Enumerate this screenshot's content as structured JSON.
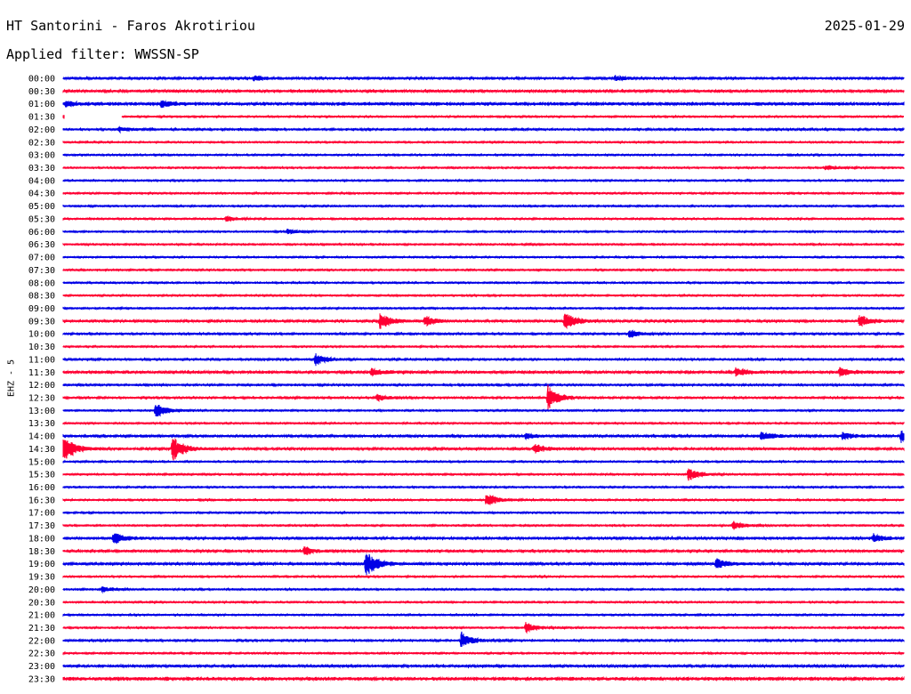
{
  "header": {
    "title": "HT Santorini - Faros Akrotiriou",
    "date": "2025-01-29",
    "filter": "Applied filter: WWSSN-SP"
  },
  "chart_data": {
    "type": "helicorder",
    "channel_label": "EHZ - 5",
    "colors": [
      "#0000e6",
      "#ff0033"
    ],
    "tick_labels": [
      "00:00",
      "00:30",
      "01:00",
      "01:30",
      "02:00",
      "02:30",
      "03:00",
      "03:30",
      "04:00",
      "04:30",
      "05:00",
      "05:30",
      "06:00",
      "06:30",
      "07:00",
      "07:30",
      "08:00",
      "08:30",
      "09:00",
      "09:30",
      "10:00",
      "10:30",
      "11:00",
      "11:30",
      "12:00",
      "12:30",
      "13:00",
      "13:30",
      "14:00",
      "14:30",
      "15:00",
      "15:30",
      "16:00",
      "16:30",
      "17:00",
      "17:30",
      "18:00",
      "18:30",
      "19:00",
      "19:30",
      "20:00",
      "20:30",
      "21:00",
      "21:30",
      "22:00",
      "22:30",
      "23:00",
      "23:30"
    ],
    "row_minutes": 30,
    "noise": [
      0.8,
      0.9,
      1.2,
      0.6,
      0.7,
      0.6,
      0.6,
      0.6,
      0.6,
      0.6,
      0.6,
      0.6,
      0.6,
      0.6,
      0.6,
      0.6,
      0.6,
      0.6,
      0.6,
      0.8,
      0.7,
      0.6,
      0.7,
      1.0,
      0.7,
      0.7,
      0.6,
      0.6,
      0.9,
      0.8,
      0.6,
      0.6,
      0.6,
      0.6,
      0.6,
      0.6,
      0.9,
      0.8,
      0.9,
      0.6,
      0.6,
      0.6,
      0.6,
      0.6,
      0.7,
      0.6,
      0.9,
      1.3
    ],
    "gap": {
      "row": 3,
      "from_minute": 0.05,
      "to_minute": 2.1
    },
    "events": [
      {
        "row": 0,
        "minute": 6.8,
        "amp": 3
      },
      {
        "row": 0,
        "minute": 19.7,
        "amp": 3
      },
      {
        "row": 2,
        "minute": 0.1,
        "amp": 3
      },
      {
        "row": 2,
        "minute": 3.5,
        "amp": 3.5
      },
      {
        "row": 3,
        "minute": 0.0,
        "amp": 2
      },
      {
        "row": 4,
        "minute": 2.0,
        "amp": 3
      },
      {
        "row": 7,
        "minute": 27.2,
        "amp": 3
      },
      {
        "row": 11,
        "minute": 5.8,
        "amp": 3
      },
      {
        "row": 12,
        "minute": 8.0,
        "amp": 3
      },
      {
        "row": 19,
        "minute": 11.3,
        "amp": 10
      },
      {
        "row": 19,
        "minute": 12.9,
        "amp": 6
      },
      {
        "row": 19,
        "minute": 17.9,
        "amp": 11
      },
      {
        "row": 19,
        "minute": 28.4,
        "amp": 8
      },
      {
        "row": 20,
        "minute": 20.2,
        "amp": 4
      },
      {
        "row": 22,
        "minute": 9.0,
        "amp": 7
      },
      {
        "row": 23,
        "minute": 11.0,
        "amp": 4
      },
      {
        "row": 23,
        "minute": 24.0,
        "amp": 5
      },
      {
        "row": 23,
        "minute": 27.7,
        "amp": 5
      },
      {
        "row": 25,
        "minute": 11.2,
        "amp": 4
      },
      {
        "row": 25,
        "minute": 17.3,
        "amp": 14
      },
      {
        "row": 26,
        "minute": 3.3,
        "amp": 8
      },
      {
        "row": 28,
        "minute": 16.5,
        "amp": 3
      },
      {
        "row": 28,
        "minute": 24.9,
        "amp": 5
      },
      {
        "row": 28,
        "minute": 27.8,
        "amp": 4
      },
      {
        "row": 28,
        "minute": 29.9,
        "amp": 7
      },
      {
        "row": 29,
        "minute": 0.0,
        "amp": 18
      },
      {
        "row": 29,
        "minute": 3.9,
        "amp": 16
      },
      {
        "row": 29,
        "minute": 16.8,
        "amp": 6
      },
      {
        "row": 31,
        "minute": 22.3,
        "amp": 7
      },
      {
        "row": 33,
        "minute": 15.1,
        "amp": 8
      },
      {
        "row": 35,
        "minute": 23.9,
        "amp": 5
      },
      {
        "row": 36,
        "minute": 1.8,
        "amp": 7
      },
      {
        "row": 36,
        "minute": 28.9,
        "amp": 5
      },
      {
        "row": 37,
        "minute": 8.6,
        "amp": 5
      },
      {
        "row": 38,
        "minute": 10.8,
        "amp": 16
      },
      {
        "row": 38,
        "minute": 23.3,
        "amp": 6
      },
      {
        "row": 40,
        "minute": 1.4,
        "amp": 3
      },
      {
        "row": 43,
        "minute": 16.5,
        "amp": 6
      },
      {
        "row": 44,
        "minute": 14.2,
        "amp": 10
      }
    ]
  }
}
